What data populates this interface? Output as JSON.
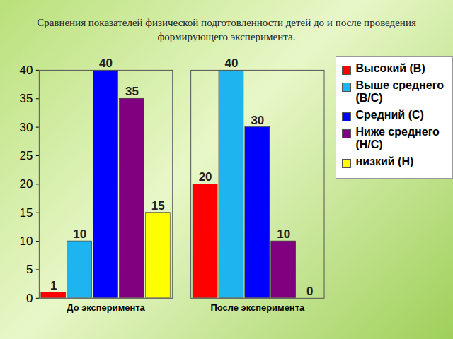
{
  "chart_data": {
    "type": "bar",
    "title": "Сравнения показателей физической подготовленности детей до и после проведения формирующего эксперимента.",
    "categories": [
      "До эксперимента",
      "После эксперимента"
    ],
    "series": [
      {
        "name": "Высокий (В)",
        "color": "#ff0000",
        "values": [
          1,
          20
        ]
      },
      {
        "name": "Выше среднего (В/С)",
        "color": "#1eb4f0",
        "values": [
          10,
          40
        ]
      },
      {
        "name": "Средний (С)",
        "color": "#0000ff",
        "values": [
          40,
          30
        ]
      },
      {
        "name": "Ниже среднего (Н/С)",
        "color": "#800080",
        "values": [
          35,
          10
        ]
      },
      {
        "name": "низкий (Н)",
        "color": "#ffff00",
        "values": [
          15,
          0
        ]
      }
    ],
    "ylim": [
      0,
      40
    ],
    "yticks": [
      0,
      5,
      10,
      15,
      20,
      25,
      30,
      35,
      40
    ],
    "grid": false,
    "data_labels": true,
    "legend": "right"
  }
}
